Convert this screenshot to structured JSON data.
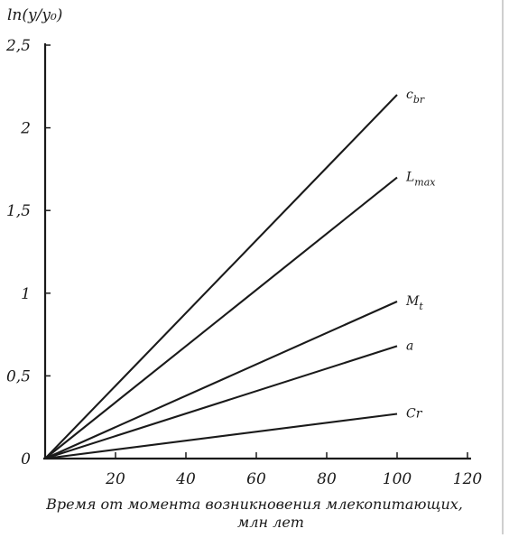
{
  "chart_data": {
    "type": "line",
    "title": "",
    "ylabel": "ln(y/y₀)",
    "xlabel_lines": [
      "Время от момента возникновения млекопитающих,",
      "млн лет"
    ],
    "xlim": [
      0,
      120
    ],
    "ylim": [
      0,
      2.5
    ],
    "x_ticks": [
      {
        "value": 20,
        "label": "20"
      },
      {
        "value": 40,
        "label": "40"
      },
      {
        "value": 60,
        "label": "60"
      },
      {
        "value": 80,
        "label": "80"
      },
      {
        "value": 100,
        "label": "100"
      },
      {
        "value": 120,
        "label": "120"
      }
    ],
    "y_ticks": [
      {
        "value": 0,
        "label": "0"
      },
      {
        "value": 0.5,
        "label": "0,5"
      },
      {
        "value": 1,
        "label": "1"
      },
      {
        "value": 1.5,
        "label": "1,5"
      },
      {
        "value": 2,
        "label": "2"
      },
      {
        "value": 2.5,
        "label": "2,5"
      }
    ],
    "grid": false,
    "series": [
      {
        "name": "c_br",
        "label_main": "c",
        "label_sub": "br",
        "x": [
          0,
          100
        ],
        "y": [
          0,
          2.2
        ]
      },
      {
        "name": "L_max",
        "label_main": "L",
        "label_sub": "max",
        "x": [
          0,
          100
        ],
        "y": [
          0,
          1.7
        ]
      },
      {
        "name": "M_t",
        "label_main": "M",
        "label_sub": "t",
        "x": [
          0,
          100
        ],
        "y": [
          0,
          0.95
        ]
      },
      {
        "name": "a",
        "label_main": "a",
        "label_sub": "",
        "x": [
          0,
          100
        ],
        "y": [
          0,
          0.68
        ]
      },
      {
        "name": "Cr",
        "label_main": "Cr",
        "label_sub": "",
        "x": [
          0,
          100
        ],
        "y": [
          0,
          0.27
        ]
      }
    ],
    "colors": {
      "ink": "#1a1a1a"
    }
  }
}
